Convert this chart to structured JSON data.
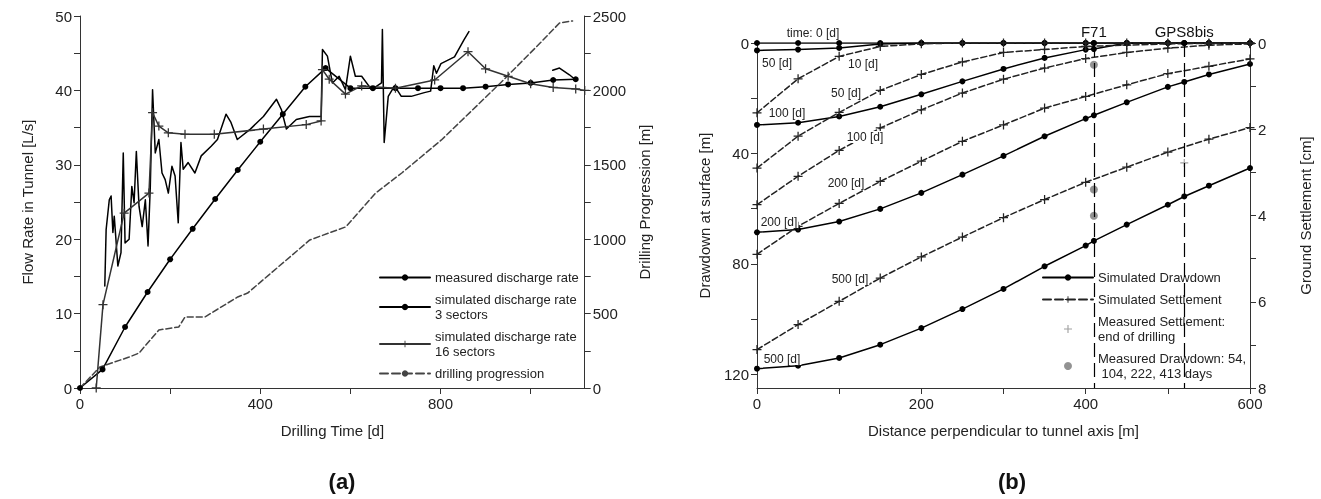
{
  "chart_data": [
    {
      "type": "line",
      "title": "(a)",
      "xlabel": "Drilling Time [d]",
      "ylabel": "Flow Rate in Tunnel [L/s]",
      "y2label": "Drilling Progression [m]",
      "xlim": [
        0,
        1120
      ],
      "xticks": [
        0,
        {
          "value": 200,
          "label": null
        },
        400,
        {
          "value": 600,
          "label": null
        },
        800,
        {
          "value": 1000,
          "label": null
        }
      ],
      "ylim": [
        0,
        50
      ],
      "yticks": [
        0,
        {
          "value": 5,
          "label": null
        },
        10,
        {
          "value": 15,
          "label": null
        },
        20,
        {
          "value": 25,
          "label": null
        },
        30,
        {
          "value": 35,
          "label": null
        },
        40,
        {
          "value": 45,
          "label": null
        },
        50
      ],
      "y2lim": [
        0,
        2500
      ],
      "y2ticks": [
        0,
        {
          "value": 250,
          "label": null
        },
        500,
        {
          "value": 750,
          "label": null
        },
        1000,
        {
          "value": 1250,
          "label": null
        },
        1500,
        {
          "value": 1750,
          "label": null
        },
        2000,
        {
          "value": 2250,
          "label": null
        },
        2500
      ],
      "legend": "bottom right",
      "grid": false,
      "series": [
        {
          "name": "measured discharge rate",
          "color": "#000000",
          "marker": "none",
          "line_style": "solid",
          "x": [
            55,
            58,
            65,
            69,
            73,
            76,
            84,
            91,
            96,
            100,
            109,
            115,
            120,
            125,
            131,
            138,
            145,
            151,
            156,
            161,
            167,
            175,
            182,
            189,
            196,
            204,
            211,
            218,
            224,
            229,
            240,
            255,
            269,
            291,
            305,
            324,
            335,
            349,
            378,
            407,
            436,
            447,
            458,
            480,
            509,
            535,
            538,
            549,
            560,
            575,
            589,
            600,
            611,
            625,
            647,
            669,
            671,
            675,
            684,
            698,
            713,
            735,
            764,
            778,
            785,
            791,
            801,
            831,
            852,
            863,
            950,
            1049,
            1064,
            1086,
            1100
          ],
          "values": [
            13.7,
            21.3,
            25.3,
            25.8,
            20.9,
            23.1,
            16.4,
            18.2,
            31.6,
            19.5,
            20,
            27.1,
            24.9,
            31.8,
            24.4,
            21.7,
            25.3,
            19.1,
            27.1,
            40.1,
            31.6,
            33.4,
            28.9,
            28,
            26.2,
            29.8,
            28.5,
            22.2,
            33,
            29.4,
            30.3,
            28.9,
            31.2,
            32.5,
            33.4,
            36.8,
            35.7,
            33.4,
            34.8,
            36.5,
            38.8,
            37.4,
            34.8,
            36.1,
            36.5,
            36.5,
            45.5,
            44.6,
            41,
            41.9,
            40.1,
            44.6,
            41.9,
            41.9,
            40.1,
            41,
            48.2,
            33,
            39.2,
            40.6,
            39.2,
            39.2,
            39.7,
            39.9,
            43.3,
            42.3,
            43.6,
            44.5,
            46.8,
            47.9,
            null,
            42.7,
            43,
            42.1,
            41.4
          ]
        },
        {
          "name": "simulated discharge rate 3 sectors",
          "color": "#000000",
          "marker": "circle",
          "line_style": "solid",
          "x": [
            0,
            50,
            100,
            150,
            200,
            250,
            300,
            350,
            400,
            450,
            500,
            545,
            600,
            650,
            700,
            750,
            800,
            850,
            900,
            950,
            1000,
            1050,
            1100
          ],
          "values": [
            0,
            2.5,
            8.2,
            12.9,
            17.3,
            21.4,
            25.4,
            29.3,
            33.1,
            36.8,
            40.5,
            43,
            40.3,
            40.3,
            40.3,
            40.3,
            40.3,
            40.3,
            40.5,
            40.8,
            41,
            41.4,
            41.5
          ]
        },
        {
          "name": "simulated discharge rate 16 sectors",
          "color": "#333333",
          "marker": "cross",
          "line_style": "solid",
          "x": [
            36,
            51,
            98,
            153,
            161,
            175,
            196,
            233,
            298,
            407,
            502,
            535,
            538,
            553,
            589,
            625,
            700,
            787,
            861,
            900,
            950,
            1000,
            1050,
            1100,
            1120
          ],
          "values": [
            0,
            11.2,
            23.5,
            26.2,
            37,
            35.2,
            34.3,
            34.1,
            34.1,
            34.8,
            35.4,
            35.9,
            42.8,
            41.5,
            39.5,
            40.6,
            40.3,
            41.4,
            45.2,
            42.9,
            41.9,
            40.9,
            40.4,
            40.2,
            40
          ]
        },
        {
          "name": "drilling progression",
          "axis": "y2",
          "color": "#444444",
          "marker": "none",
          "line_style": "dashed",
          "x": [
            0,
            44,
            109,
            131,
            175,
            219,
            233,
            277,
            350,
            372,
            510,
            590,
            656,
            714,
            802,
            933,
            1021,
            1064,
            1093
          ],
          "values": [
            0,
            141,
            208,
            235,
            390,
            410,
            477,
            477,
            612,
            638,
            995,
            1083,
            1310,
            1445,
            1667,
            2050,
            2318,
            2453,
            2467
          ]
        }
      ]
    },
    {
      "type": "line",
      "title": "(b)",
      "xlabel": "Distance perpendicular to tunnel axis [m]",
      "ylabel": "Drawdown at surface [m]",
      "y2label": "Ground Settlement [cm]",
      "xlim": [
        0,
        600
      ],
      "xticks": [
        0,
        {
          "value": 100,
          "label": null
        },
        200,
        {
          "value": 300,
          "label": null
        },
        400,
        {
          "value": 500,
          "label": null
        },
        600
      ],
      "ylim": [
        125,
        0
      ],
      "yticks": [
        0,
        {
          "value": 20,
          "label": null
        },
        40,
        {
          "value": 60,
          "label": null
        },
        80,
        {
          "value": 100,
          "label": null
        },
        120
      ],
      "y2lim": [
        8,
        0
      ],
      "y2ticks": [
        0,
        {
          "value": 1,
          "label": null
        },
        2,
        {
          "value": 3,
          "label": null
        },
        4,
        {
          "value": 5,
          "label": null
        },
        6,
        {
          "value": 7,
          "label": null
        },
        8
      ],
      "legend": "bottom right",
      "grid": false,
      "ref_lines": [
        {
          "axis": "x",
          "value": 410,
          "label": "F71",
          "line_style": "dashed",
          "color": "#000000"
        },
        {
          "axis": "x",
          "value": 520,
          "label": "GPS8bis",
          "line_style": "dashed",
          "color": "#000000"
        }
      ],
      "annotations": [
        "time: 0 [d]",
        "50 [d]",
        "10 [d]",
        "100 [d]",
        "50 [d]",
        "100 [d]",
        "200 [d]",
        "200 [d]",
        "500 [d]",
        "500 [d]"
      ],
      "series": [
        {
          "name": "Simulated Drawdown",
          "color": "#000000",
          "marker": "circle",
          "line_style": "solid",
          "x": [
            0,
            50,
            100,
            150,
            200,
            250,
            300,
            350,
            400,
            410,
            450,
            500,
            520,
            550,
            600
          ],
          "values": [
            0,
            0,
            0,
            0,
            0,
            0,
            0,
            0,
            0,
            0,
            0,
            0,
            0,
            0,
            0
          ]
        },
        {
          "color": "#000000",
          "marker": "circle",
          "line_style": "solid",
          "x": [
            0,
            50,
            100,
            150,
            200,
            250,
            300,
            350,
            400,
            410,
            450,
            500,
            520,
            550,
            600
          ],
          "values": [
            2.7,
            2.4,
            1.8,
            0.4,
            0,
            0,
            0,
            0,
            0,
            0,
            0,
            0,
            0,
            0,
            0
          ]
        },
        {
          "color": "#000000",
          "marker": "circle",
          "line_style": "solid",
          "x": [
            0,
            50,
            100,
            150,
            200,
            250,
            300,
            350,
            400,
            410,
            450,
            500,
            520,
            550,
            600
          ],
          "values": [
            29.7,
            28.9,
            26.6,
            23.1,
            18.6,
            13.9,
            9.4,
            5.4,
            2.4,
            2.2,
            0,
            0,
            0,
            0,
            0
          ]
        },
        {
          "color": "#000000",
          "marker": "circle",
          "line_style": "solid",
          "x": [
            0,
            50,
            100,
            150,
            200,
            250,
            300,
            350,
            400,
            410,
            450,
            500,
            520,
            550,
            600
          ],
          "values": [
            68.6,
            67.6,
            64.7,
            60.1,
            54.3,
            47.7,
            40.9,
            33.8,
            27.4,
            26.2,
            21.5,
            15.9,
            14.1,
            11.4,
            7.6
          ]
        },
        {
          "color": "#000000",
          "marker": "circle",
          "line_style": "solid",
          "x": [
            0,
            50,
            100,
            150,
            200,
            250,
            300,
            350,
            400,
            410,
            450,
            500,
            520,
            550,
            600
          ],
          "values": [
            118,
            116.9,
            114.1,
            109.3,
            103.3,
            96.4,
            89.1,
            80.9,
            73.4,
            71.7,
            65.8,
            58.6,
            55.6,
            51.7,
            45.3
          ]
        },
        {
          "name": "Simulated Settlement",
          "axis": "y2",
          "color": "#222222",
          "marker": "cross",
          "line_style": "dashed",
          "x": [
            0,
            50,
            100,
            150,
            200,
            250,
            300,
            350,
            400,
            450,
            500,
            550,
            600
          ],
          "values": [
            1.62,
            0.83,
            0.31,
            0.08,
            0.02,
            0,
            0,
            0,
            0,
            0,
            0,
            0,
            0
          ]
        },
        {
          "axis": "y2",
          "color": "#222222",
          "marker": "cross",
          "line_style": "dashed",
          "x": [
            0,
            50,
            100,
            150,
            200,
            250,
            300,
            350,
            400,
            450,
            500,
            550,
            600
          ],
          "values": [
            2.9,
            2.16,
            1.61,
            1.1,
            0.73,
            0.44,
            0.22,
            0.15,
            0.08,
            0.05,
            0.02,
            0.01,
            0
          ]
        },
        {
          "axis": "y2",
          "color": "#222222",
          "marker": "cross",
          "line_style": "dashed",
          "x": [
            0,
            50,
            100,
            150,
            200,
            250,
            300,
            350,
            400,
            450,
            500,
            550,
            600
          ],
          "values": [
            3.75,
            3.09,
            2.49,
            1.97,
            1.55,
            1.16,
            0.84,
            0.58,
            0.36,
            0.22,
            0.12,
            0.05,
            0.02
          ]
        },
        {
          "axis": "y2",
          "color": "#222222",
          "marker": "cross",
          "line_style": "dashed",
          "x": [
            0,
            50,
            100,
            150,
            200,
            250,
            300,
            350,
            400,
            450,
            500,
            550,
            600
          ],
          "values": [
            4.9,
            4.25,
            3.72,
            3.21,
            2.74,
            2.28,
            1.9,
            1.51,
            1.24,
            0.97,
            0.71,
            0.54,
            0.37
          ]
        },
        {
          "axis": "y2",
          "color": "#222222",
          "marker": "cross",
          "line_style": "dashed",
          "x": [
            0,
            50,
            100,
            150,
            200,
            250,
            300,
            350,
            400,
            450,
            500,
            550,
            600
          ],
          "values": [
            7.11,
            6.53,
            5.99,
            5.45,
            4.96,
            4.5,
            4.05,
            3.63,
            3.23,
            2.88,
            2.53,
            2.23,
            1.96
          ]
        },
        {
          "name": "Measured Settlement: end of drilling",
          "type": "scatter",
          "axis": "y2",
          "color": "#888888",
          "marker": "cross",
          "x": [
            520
          ],
          "values": [
            2.78
          ]
        },
        {
          "name": "Measured Drawdown: 54, 104, 222, 413 days",
          "type": "scatter",
          "color": "#777777",
          "marker": "circle",
          "x": [
            410,
            410,
            410
          ],
          "values": [
            7.9,
            53.1,
            62.6
          ]
        }
      ]
    }
  ]
}
